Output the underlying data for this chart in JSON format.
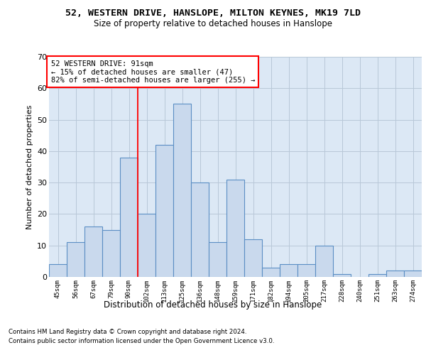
{
  "title1": "52, WESTERN DRIVE, HANSLOPE, MILTON KEYNES, MK19 7LD",
  "title2": "Size of property relative to detached houses in Hanslope",
  "xlabel": "Distribution of detached houses by size in Hanslope",
  "ylabel": "Number of detached properties",
  "categories": [
    "45sqm",
    "56sqm",
    "67sqm",
    "79sqm",
    "90sqm",
    "102sqm",
    "113sqm",
    "125sqm",
    "136sqm",
    "148sqm",
    "159sqm",
    "171sqm",
    "182sqm",
    "194sqm",
    "205sqm",
    "217sqm",
    "228sqm",
    "240sqm",
    "251sqm",
    "263sqm",
    "274sqm"
  ],
  "values": [
    4,
    11,
    16,
    15,
    38,
    20,
    42,
    55,
    30,
    11,
    31,
    12,
    3,
    4,
    4,
    10,
    1,
    0,
    1,
    2,
    2
  ],
  "bar_color": "#c9d9ed",
  "bar_edge_color": "#5b8ec4",
  "property_sqm": 91,
  "annotation_line1": "52 WESTERN DRIVE: 91sqm",
  "annotation_line2": "← 15% of detached houses are smaller (47)",
  "annotation_line3": "82% of semi-detached houses are larger (255) →",
  "ylim": [
    0,
    70
  ],
  "yticks": [
    0,
    10,
    20,
    30,
    40,
    50,
    60,
    70
  ],
  "grid_color": "#b8c8d8",
  "bg_color": "#dce8f5",
  "footer1": "Contains HM Land Registry data © Crown copyright and database right 2024.",
  "footer2": "Contains public sector information licensed under the Open Government Licence v3.0."
}
